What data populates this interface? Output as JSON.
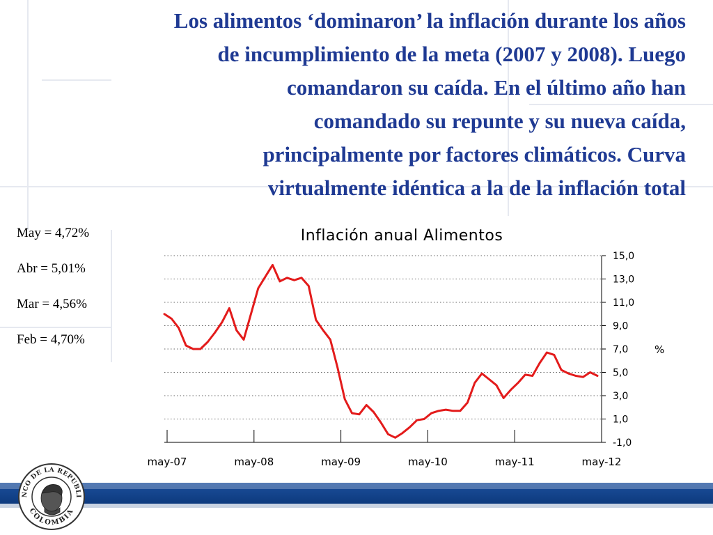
{
  "slide": {
    "title_lines": [
      "Los alimentos ‘dominaron’ la inflación durante los años",
      "de incumplimiento de la meta (2007 y 2008). Luego",
      "comandaron su caída. En el último año han",
      "comandado su repunte y su nueva caída,",
      "principalmente por factores climáticos. Curva",
      "virtualmente idéntica a la de la inflación total"
    ],
    "notes": [
      "May = 4,72%",
      "Abr = 5,01%",
      "Mar = 4,56%",
      "Feb = 4,70%"
    ],
    "logo": {
      "name": "banco-de-la-republica-seal",
      "text_top": "BANCO DE LA REPUBLICA",
      "text_bottom": "COLOMBIA"
    }
  },
  "colors": {
    "title": "#1f3a93",
    "series": "#e31b1b",
    "footer": "#1a4b97"
  },
  "chart_data": {
    "type": "line",
    "title": "Inflación anual Alimentos",
    "ylabel": "%",
    "ylim": [
      -1,
      15
    ],
    "yticks": [
      "15,0",
      "13,0",
      "11,0",
      "9,0",
      "7,0",
      "5,0",
      "3,0",
      "1,0",
      "-1,0"
    ],
    "xticks": [
      "may-07",
      "may-08",
      "may-09",
      "may-10",
      "may-11",
      "may-12"
    ],
    "x_start": "may-07",
    "x_end": "may-12",
    "grid": "horizontal-dotted",
    "y_axis_side": "right",
    "series": [
      {
        "values": [
          10.0,
          9.6,
          8.8,
          7.3,
          7.0,
          7.0,
          7.6,
          8.4,
          9.3,
          10.5,
          8.6,
          7.8,
          10.0,
          12.2,
          13.2,
          14.2,
          12.8,
          13.1,
          12.9,
          13.1,
          12.4,
          9.5,
          8.6,
          7.8,
          5.4,
          2.7,
          1.5,
          1.4,
          2.2,
          1.6,
          0.7,
          -0.3,
          -0.6,
          -0.2,
          0.3,
          0.9,
          1.0,
          1.5,
          1.7,
          1.8,
          1.7,
          1.7,
          2.4,
          4.1,
          4.9,
          4.4,
          3.9,
          2.8,
          3.5,
          4.1,
          4.8,
          4.7,
          5.8,
          6.7,
          6.5,
          5.2,
          4.9,
          4.7,
          4.6,
          5.0,
          4.7
        ]
      }
    ]
  }
}
